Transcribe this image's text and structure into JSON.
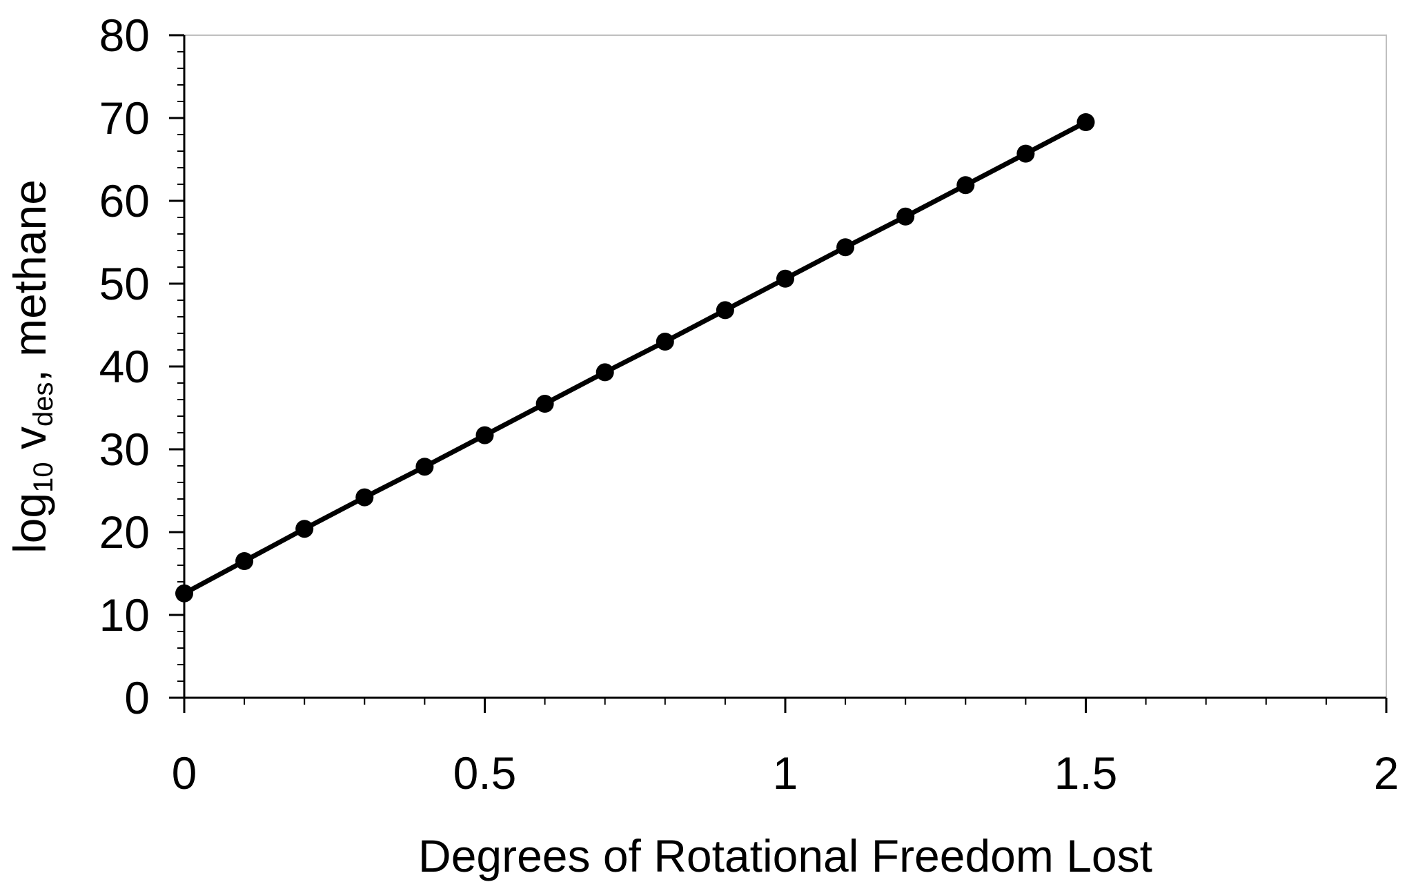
{
  "chart_data": {
    "type": "line",
    "title": "",
    "xlabel": "Degrees of Rotational Freedom Lost",
    "ylabel": {
      "prefix": "log",
      "prefix_sub": "10",
      "mid": " v",
      "mid_sub": "des",
      "suffix": ", methane"
    },
    "xlim": [
      0,
      2
    ],
    "ylim": [
      0,
      80
    ],
    "xticks": [
      0,
      0.5,
      1,
      1.5,
      2
    ],
    "xtick_labels": [
      "0",
      "0.5",
      "1",
      "1.5",
      "2"
    ],
    "x_minor_step": 0.1,
    "yticks": [
      0,
      10,
      20,
      30,
      40,
      50,
      60,
      70,
      80
    ],
    "ytick_labels": [
      "0",
      "10",
      "20",
      "30",
      "40",
      "50",
      "60",
      "70",
      "80"
    ],
    "y_minor_step": 2,
    "grid": false,
    "legend": "none",
    "series": [
      {
        "color": "#000000",
        "marker": "circle",
        "x": [
          0,
          0.1,
          0.2,
          0.3,
          0.4,
          0.5,
          0.6,
          0.7,
          0.8,
          0.9,
          1.0,
          1.1,
          1.2,
          1.3,
          1.4,
          1.5
        ],
        "y": [
          12.6,
          16.5,
          20.4,
          24.2,
          27.9,
          31.7,
          35.5,
          39.3,
          43.0,
          46.8,
          50.6,
          54.4,
          58.1,
          61.9,
          65.7,
          69.5
        ]
      }
    ]
  }
}
